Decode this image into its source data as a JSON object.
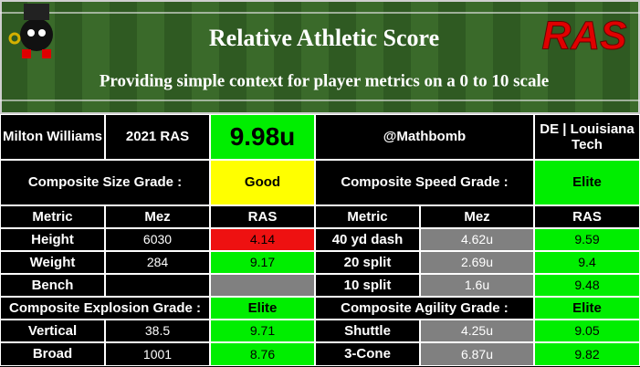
{
  "header": {
    "title": "Relative Athletic Score",
    "subtitle": "Providing simple context for player metrics on a 0 to 10 scale",
    "logo": "RAS"
  },
  "player": {
    "name": "Milton Williams",
    "label": "2021 RAS",
    "score": "9.98u",
    "score_color": "#00ee00",
    "handle": "@Mathbomb",
    "team": "DE | Louisiana Tech"
  },
  "grades": {
    "size": {
      "label": "Composite Size Grade :",
      "grade": "Good",
      "color": "#ffff00"
    },
    "speed": {
      "label": "Composite Speed Grade :",
      "grade": "Elite",
      "color": "#00ee00"
    },
    "explosion": {
      "label": "Composite Explosion Grade :",
      "grade": "Elite",
      "color": "#00ee00"
    },
    "agility": {
      "label": "Composite Agility Grade :",
      "grade": "Elite",
      "color": "#00ee00"
    }
  },
  "columns": [
    "Metric",
    "Mez",
    "RAS",
    "Metric",
    "Mez",
    "RAS"
  ],
  "size_rows": [
    {
      "metric": "Height",
      "mez": "6030",
      "ras": 4.14,
      "color": "#ee1111"
    },
    {
      "metric": "Weight",
      "mez": "284",
      "ras": 9.17,
      "color": "#00ee00"
    },
    {
      "metric": "Bench",
      "mez": null,
      "ras": null,
      "color": "#808080"
    }
  ],
  "speed_rows": [
    {
      "metric": "40 yd dash",
      "mez": "4.62u",
      "ras": 9.59,
      "color": "#00ee00"
    },
    {
      "metric": "20 split",
      "mez": "2.69u",
      "ras": 9.4,
      "color": "#00ee00"
    },
    {
      "metric": "10 split",
      "mez": "1.6u",
      "ras": 9.48,
      "color": "#00ee00"
    }
  ],
  "explosion_rows": [
    {
      "metric": "Vertical",
      "mez": "38.5",
      "ras": 9.71,
      "color": "#00ee00"
    },
    {
      "metric": "Broad",
      "mez": "1001",
      "ras": 8.76,
      "color": "#00ee00"
    }
  ],
  "agility_rows": [
    {
      "metric": "Shuttle",
      "mez": "4.25u",
      "ras": 9.05,
      "color": "#00ee00"
    },
    {
      "metric": "3-Cone",
      "mez": "6.87u",
      "ras": 9.82,
      "color": "#00ee00"
    }
  ]
}
